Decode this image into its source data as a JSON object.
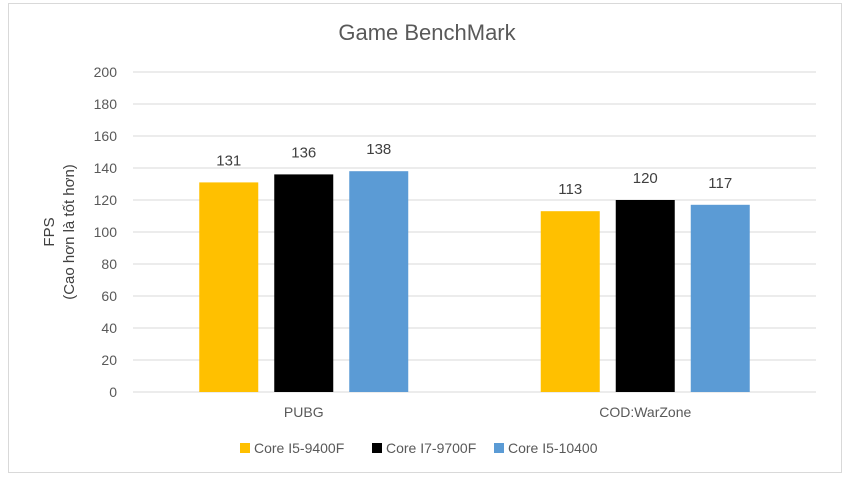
{
  "chart_data": {
    "type": "bar",
    "title": "Game BenchMark",
    "ylabel": [
      "FPS",
      "(Cao hơn là tốt hơn)"
    ],
    "xlabel": "",
    "categories": [
      "PUBG",
      "COD:WarZone"
    ],
    "series": [
      {
        "name": "Core I5-9400F",
        "values": [
          131,
          113
        ],
        "color": "#ffc000"
      },
      {
        "name": "Core I7-9700F",
        "values": [
          136,
          120
        ],
        "color": "#000000"
      },
      {
        "name": "Core I5-10400",
        "values": [
          138,
          117
        ],
        "color": "#5b9bd5"
      }
    ],
    "ylim": [
      0,
      200
    ],
    "yticks": [
      0,
      20,
      40,
      60,
      80,
      100,
      120,
      140,
      160,
      180,
      200
    ],
    "grid": true,
    "legend": "bottom",
    "data_labels": true
  }
}
